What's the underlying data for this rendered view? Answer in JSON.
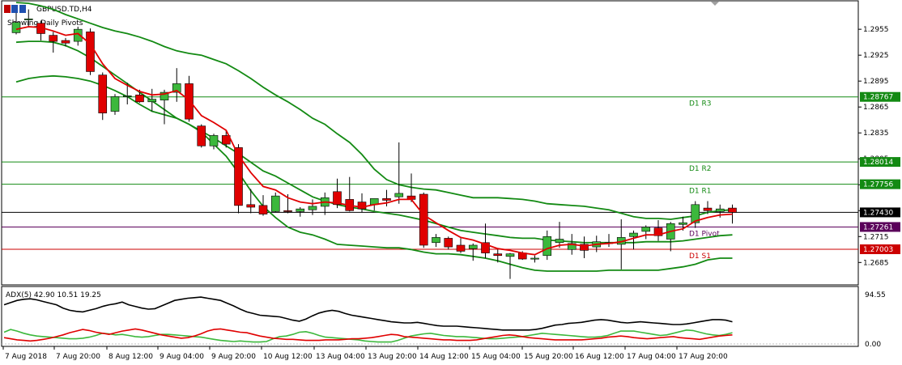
{
  "header": {
    "symbol_title": "GBPUSD.TD,H4",
    "indicator_label": "Showing Daily Pivots"
  },
  "adx_panel": {
    "label": "ADX(5) 42.90 10.51 19.25",
    "scale_top": "94.55",
    "scale_bottom": "0.00"
  },
  "colors": {
    "bull": "#3cb83c",
    "bear": "#e00000",
    "ma_red": "#e00000",
    "band_green": "#138a13",
    "r_level": "#138a13",
    "pivot_level": "#5a005a",
    "s_level": "#cc0000",
    "price_line": "#000000",
    "adx_main": "#000000",
    "adx_plus": "#3cb83c",
    "adx_minus": "#e00000"
  },
  "chart_data": {
    "type": "candlestick",
    "title": "GBPUSD.TD,H4",
    "y_ticks": [
      1.2955,
      1.2925,
      1.2895,
      1.2865,
      1.2835,
      1.2805,
      1.2775,
      1.2745,
      1.2715,
      1.2685
    ],
    "ylim": [
      1.266,
      1.2987
    ],
    "x_labels": [
      "7 Aug 2018",
      "7 Aug 20:00",
      "8 Aug 12:00",
      "9 Aug 04:00",
      "9 Aug 20:00",
      "10 Aug 12:00",
      "13 Aug 04:00",
      "13 Aug 20:00",
      "14 Aug 12:00",
      "15 Aug 04:00",
      "15 Aug 20:00",
      "16 Aug 12:00",
      "17 Aug 04:00",
      "17 Aug 20:00"
    ],
    "candles": [
      {
        "o": 1.2951,
        "h": 1.2974,
        "l": 1.2949,
        "c": 1.2963
      },
      {
        "o": 1.2966,
        "h": 1.2978,
        "l": 1.2957,
        "c": 1.2967
      },
      {
        "o": 1.2962,
        "h": 1.2965,
        "l": 1.2942,
        "c": 1.295
      },
      {
        "o": 1.2948,
        "h": 1.2952,
        "l": 1.2928,
        "c": 1.2941
      },
      {
        "o": 1.2942,
        "h": 1.2945,
        "l": 1.2935,
        "c": 1.2939
      },
      {
        "o": 1.2941,
        "h": 1.2958,
        "l": 1.2936,
        "c": 1.2955
      },
      {
        "o": 1.2952,
        "h": 1.2956,
        "l": 1.2902,
        "c": 1.2906
      },
      {
        "o": 1.2902,
        "h": 1.2905,
        "l": 1.285,
        "c": 1.2858
      },
      {
        "o": 1.286,
        "h": 1.288,
        "l": 1.2856,
        "c": 1.2877
      },
      {
        "o": 1.2877,
        "h": 1.2893,
        "l": 1.2868,
        "c": 1.2878
      },
      {
        "o": 1.2879,
        "h": 1.2885,
        "l": 1.287,
        "c": 1.2871
      },
      {
        "o": 1.2871,
        "h": 1.2886,
        "l": 1.286,
        "c": 1.2874
      },
      {
        "o": 1.2873,
        "h": 1.2885,
        "l": 1.2845,
        "c": 1.2882
      },
      {
        "o": 1.2882,
        "h": 1.291,
        "l": 1.2871,
        "c": 1.2892
      },
      {
        "o": 1.2892,
        "h": 1.2901,
        "l": 1.2848,
        "c": 1.2851
      },
      {
        "o": 1.2843,
        "h": 1.2845,
        "l": 1.2818,
        "c": 1.282
      },
      {
        "o": 1.282,
        "h": 1.2834,
        "l": 1.2816,
        "c": 1.2832
      },
      {
        "o": 1.2832,
        "h": 1.2838,
        "l": 1.2818,
        "c": 1.2822
      },
      {
        "o": 1.2818,
        "h": 1.2822,
        "l": 1.2742,
        "c": 1.2751
      },
      {
        "o": 1.2752,
        "h": 1.277,
        "l": 1.2742,
        "c": 1.2749
      },
      {
        "o": 1.2751,
        "h": 1.2763,
        "l": 1.2739,
        "c": 1.2741
      },
      {
        "o": 1.2744,
        "h": 1.2766,
        "l": 1.2743,
        "c": 1.2762
      },
      {
        "o": 1.2745,
        "h": 1.2764,
        "l": 1.2742,
        "c": 1.2744
      },
      {
        "o": 1.2744,
        "h": 1.2749,
        "l": 1.2738,
        "c": 1.2747
      },
      {
        "o": 1.2746,
        "h": 1.2758,
        "l": 1.274,
        "c": 1.275
      },
      {
        "o": 1.275,
        "h": 1.2766,
        "l": 1.274,
        "c": 1.276
      },
      {
        "o": 1.2767,
        "h": 1.2782,
        "l": 1.2748,
        "c": 1.2752
      },
      {
        "o": 1.2758,
        "h": 1.2784,
        "l": 1.2744,
        "c": 1.2745
      },
      {
        "o": 1.2755,
        "h": 1.2765,
        "l": 1.2743,
        "c": 1.2747
      },
      {
        "o": 1.2752,
        "h": 1.2759,
        "l": 1.2745,
        "c": 1.2759
      },
      {
        "o": 1.2759,
        "h": 1.2769,
        "l": 1.275,
        "c": 1.2757
      },
      {
        "o": 1.2761,
        "h": 1.2824,
        "l": 1.2753,
        "c": 1.2765
      },
      {
        "o": 1.2762,
        "h": 1.2788,
        "l": 1.2755,
        "c": 1.2758
      },
      {
        "o": 1.2764,
        "h": 1.2766,
        "l": 1.2702,
        "c": 1.2705
      },
      {
        "o": 1.2708,
        "h": 1.2718,
        "l": 1.2703,
        "c": 1.2714
      },
      {
        "o": 1.2713,
        "h": 1.2715,
        "l": 1.27,
        "c": 1.2703
      },
      {
        "o": 1.2705,
        "h": 1.2713,
        "l": 1.2696,
        "c": 1.2698
      },
      {
        "o": 1.2701,
        "h": 1.2707,
        "l": 1.2687,
        "c": 1.2705
      },
      {
        "o": 1.2708,
        "h": 1.273,
        "l": 1.269,
        "c": 1.2696
      },
      {
        "o": 1.2695,
        "h": 1.27,
        "l": 1.2685,
        "c": 1.2693
      },
      {
        "o": 1.2692,
        "h": 1.2696,
        "l": 1.2666,
        "c": 1.2695
      },
      {
        "o": 1.2696,
        "h": 1.2698,
        "l": 1.2688,
        "c": 1.2689
      },
      {
        "o": 1.269,
        "h": 1.2693,
        "l": 1.2685,
        "c": 1.269
      },
      {
        "o": 1.2693,
        "h": 1.2722,
        "l": 1.2688,
        "c": 1.2715
      },
      {
        "o": 1.2708,
        "h": 1.2732,
        "l": 1.2702,
        "c": 1.2712
      },
      {
        "o": 1.27,
        "h": 1.2718,
        "l": 1.2694,
        "c": 1.2707
      },
      {
        "o": 1.2706,
        "h": 1.2715,
        "l": 1.269,
        "c": 1.2699
      },
      {
        "o": 1.2703,
        "h": 1.2716,
        "l": 1.2697,
        "c": 1.2709
      },
      {
        "o": 1.2708,
        "h": 1.2718,
        "l": 1.2703,
        "c": 1.2708
      },
      {
        "o": 1.2706,
        "h": 1.2735,
        "l": 1.2677,
        "c": 1.2714
      },
      {
        "o": 1.2715,
        "h": 1.2722,
        "l": 1.27,
        "c": 1.2719
      },
      {
        "o": 1.2721,
        "h": 1.2728,
        "l": 1.2712,
        "c": 1.2726
      },
      {
        "o": 1.2725,
        "h": 1.2734,
        "l": 1.271,
        "c": 1.2716
      },
      {
        "o": 1.2712,
        "h": 1.2732,
        "l": 1.2698,
        "c": 1.273
      },
      {
        "o": 1.2729,
        "h": 1.2738,
        "l": 1.2722,
        "c": 1.2731
      },
      {
        "o": 1.2731,
        "h": 1.2756,
        "l": 1.2725,
        "c": 1.2752
      },
      {
        "o": 1.2748,
        "h": 1.2756,
        "l": 1.2741,
        "c": 1.2745
      },
      {
        "o": 1.2744,
        "h": 1.2752,
        "l": 1.2737,
        "c": 1.2747
      },
      {
        "o": 1.2748,
        "h": 1.2752,
        "l": 1.273,
        "c": 1.2743
      }
    ],
    "moving_average": [
      1.2955,
      1.2958,
      1.2957,
      1.2953,
      1.2948,
      1.295,
      1.2938,
      1.2915,
      1.2898,
      1.289,
      1.2883,
      1.2879,
      1.288,
      1.2884,
      1.2873,
      1.2855,
      1.2847,
      1.2838,
      1.2809,
      1.2789,
      1.2773,
      1.2769,
      1.276,
      1.2755,
      1.2753,
      1.2755,
      1.2754,
      1.2751,
      1.2749,
      1.2752,
      1.2754,
      1.2758,
      1.2758,
      1.274,
      1.2731,
      1.2722,
      1.2714,
      1.2711,
      1.2706,
      1.2701,
      1.2699,
      1.2696,
      1.2694,
      1.2701,
      1.2705,
      1.2706,
      1.2704,
      1.2706,
      1.2707,
      1.2709,
      1.2713,
      1.2717,
      1.2717,
      1.2721,
      1.2724,
      1.2733,
      1.2737,
      1.274,
      1.2741
    ],
    "band_upper": [
      1.2986,
      1.2985,
      1.2982,
      1.2978,
      1.2972,
      1.2967,
      1.2962,
      1.2957,
      1.2953,
      1.295,
      1.2946,
      1.2941,
      1.2935,
      1.293,
      1.2927,
      1.2925,
      1.292,
      1.2915,
      1.2907,
      1.2898,
      1.2888,
      1.2879,
      1.2871,
      1.2862,
      1.2852,
      1.2845,
      1.2834,
      1.2824,
      1.281,
      1.2793,
      1.2781,
      1.2775,
      1.2772,
      1.277,
      1.2769,
      1.2766,
      1.2763,
      1.276,
      1.276,
      1.276,
      1.2759,
      1.2758,
      1.2756,
      1.2753,
      1.2752,
      1.2751,
      1.275,
      1.2748,
      1.2746,
      1.2742,
      1.2738,
      1.2736,
      1.2736,
      1.2735,
      1.2737,
      1.2739,
      1.2743,
      1.2745,
      1.2746
    ],
    "band_lower": [
      1.2894,
      1.2898,
      1.29,
      1.2901,
      1.29,
      1.2898,
      1.2895,
      1.289,
      1.2884,
      1.2877,
      1.2868,
      1.286,
      1.2856,
      1.2852,
      1.2845,
      1.2836,
      1.2822,
      1.2808,
      1.2789,
      1.2768,
      1.275,
      1.2737,
      1.2726,
      1.272,
      1.2717,
      1.2712,
      1.2706,
      1.2705,
      1.2704,
      1.2703,
      1.2702,
      1.2702,
      1.27,
      1.2697,
      1.2695,
      1.2695,
      1.2694,
      1.2692,
      1.269,
      1.2687,
      1.2683,
      1.2679,
      1.2676,
      1.2675,
      1.2675,
      1.2675,
      1.2675,
      1.2675,
      1.2676,
      1.2676,
      1.2676,
      1.2676,
      1.2676,
      1.2678,
      1.268,
      1.2683,
      1.2688,
      1.269,
      1.269
    ],
    "band_mid": [
      1.294,
      1.2941,
      1.2941,
      1.294,
      1.2936,
      1.293,
      1.2922,
      1.2912,
      1.2902,
      1.2892,
      1.2882,
      1.2872,
      1.2862,
      1.2852,
      1.2845,
      1.2837,
      1.2829,
      1.282,
      1.2811,
      1.2801,
      1.2791,
      1.2785,
      1.2777,
      1.2769,
      1.2761,
      1.2756,
      1.2752,
      1.2749,
      1.2747,
      1.2744,
      1.2742,
      1.274,
      1.2737,
      1.2734,
      1.273,
      1.2726,
      1.2722,
      1.272,
      1.2718,
      1.2716,
      1.2714,
      1.2713,
      1.2713,
      1.2711,
      1.271,
      1.2709,
      1.2708,
      1.2708,
      1.2708,
      1.2708,
      1.2708,
      1.2709,
      1.2709,
      1.2709,
      1.271,
      1.2712,
      1.2714,
      1.2716,
      1.2717
    ],
    "levels": [
      {
        "name": "D1 R3",
        "value": 1.28767,
        "label": "1.28767",
        "color_key": "r_level"
      },
      {
        "name": "D1 R2",
        "value": 1.28014,
        "label": "1.28014",
        "color_key": "r_level"
      },
      {
        "name": "D1 R1",
        "value": 1.27756,
        "label": "1.27756",
        "color_key": "r_level"
      },
      {
        "name": "",
        "value": 1.2743,
        "label": "1.27430",
        "color_key": "price_line"
      },
      {
        "name": "D1 Pivot",
        "value": 1.27261,
        "label": "1.27261",
        "color_key": "pivot_level"
      },
      {
        "name": "D1 S1",
        "value": 1.27003,
        "label": "1.27003",
        "color_key": "s_level"
      }
    ],
    "adx": {
      "ylim": [
        0,
        94.55
      ],
      "main": [
        70,
        74,
        78,
        80,
        81,
        79,
        76,
        73,
        70,
        64,
        60,
        58,
        57,
        60,
        63,
        67,
        70,
        72,
        75,
        70,
        67,
        64,
        62,
        63,
        68,
        73,
        78,
        80,
        82,
        83,
        84,
        82,
        80,
        78,
        73,
        68,
        62,
        57,
        54,
        51,
        50,
        49,
        48,
        45,
        42,
        40,
        44,
        50,
        55,
        58,
        60,
        58,
        54,
        51,
        49,
        47,
        45,
        43,
        41,
        39,
        38,
        37,
        37,
        38,
        36,
        34,
        32,
        31,
        31,
        31,
        30,
        29,
        28,
        27,
        26,
        25,
        24,
        24,
        24,
        24,
        24,
        25,
        27,
        30,
        33,
        34,
        36,
        37,
        38,
        40,
        42,
        43,
        42,
        40,
        38,
        37,
        38,
        39,
        38,
        37,
        36,
        35,
        34,
        34,
        35,
        37,
        39,
        41,
        43,
        43,
        42,
        39
      ],
      "plus_di": [
        20,
        25,
        22,
        18,
        15,
        13,
        12,
        11,
        10,
        9,
        8,
        8,
        9,
        11,
        14,
        18,
        17,
        15,
        16,
        14,
        12,
        11,
        12,
        14,
        16,
        16,
        15,
        14,
        13,
        12,
        11,
        9,
        7,
        5,
        4,
        3,
        4,
        3,
        2,
        2,
        3,
        8,
        12,
        13,
        16,
        20,
        21,
        18,
        14,
        11,
        10,
        9,
        8,
        7,
        6,
        4,
        3,
        2,
        2,
        2,
        5,
        9,
        13,
        15,
        17,
        18,
        16,
        14,
        13,
        12,
        12,
        11,
        10,
        9,
        8,
        8,
        9,
        10,
        11,
        12,
        14,
        16,
        18,
        17,
        16,
        15,
        14,
        13,
        12,
        11,
        11,
        12,
        14,
        18,
        22,
        22,
        22,
        20,
        18,
        16,
        14,
        15,
        18,
        21,
        24,
        23,
        20,
        17,
        15,
        14,
        16,
        19
      ],
      "minus_di": [
        10,
        8,
        6,
        5,
        4,
        5,
        7,
        9,
        12,
        15,
        19,
        22,
        25,
        23,
        20,
        18,
        16,
        19,
        22,
        24,
        26,
        24,
        21,
        18,
        15,
        13,
        11,
        9,
        10,
        13,
        17,
        22,
        25,
        26,
        24,
        22,
        20,
        19,
        16,
        13,
        11,
        9,
        8,
        7,
        7,
        6,
        5,
        5,
        5,
        6,
        6,
        6,
        7,
        8,
        8,
        9,
        10,
        12,
        14,
        16,
        15,
        12,
        11,
        10,
        9,
        8,
        7,
        6,
        6,
        5,
        5,
        5,
        6,
        8,
        10,
        12,
        14,
        15,
        14,
        12,
        10,
        9,
        8,
        7,
        6,
        6,
        6,
        6,
        6,
        7,
        8,
        9,
        11,
        12,
        13,
        12,
        10,
        9,
        8,
        9,
        10,
        11,
        12,
        10,
        9,
        8,
        7,
        9,
        11,
        13,
        14,
        15
      ]
    }
  }
}
